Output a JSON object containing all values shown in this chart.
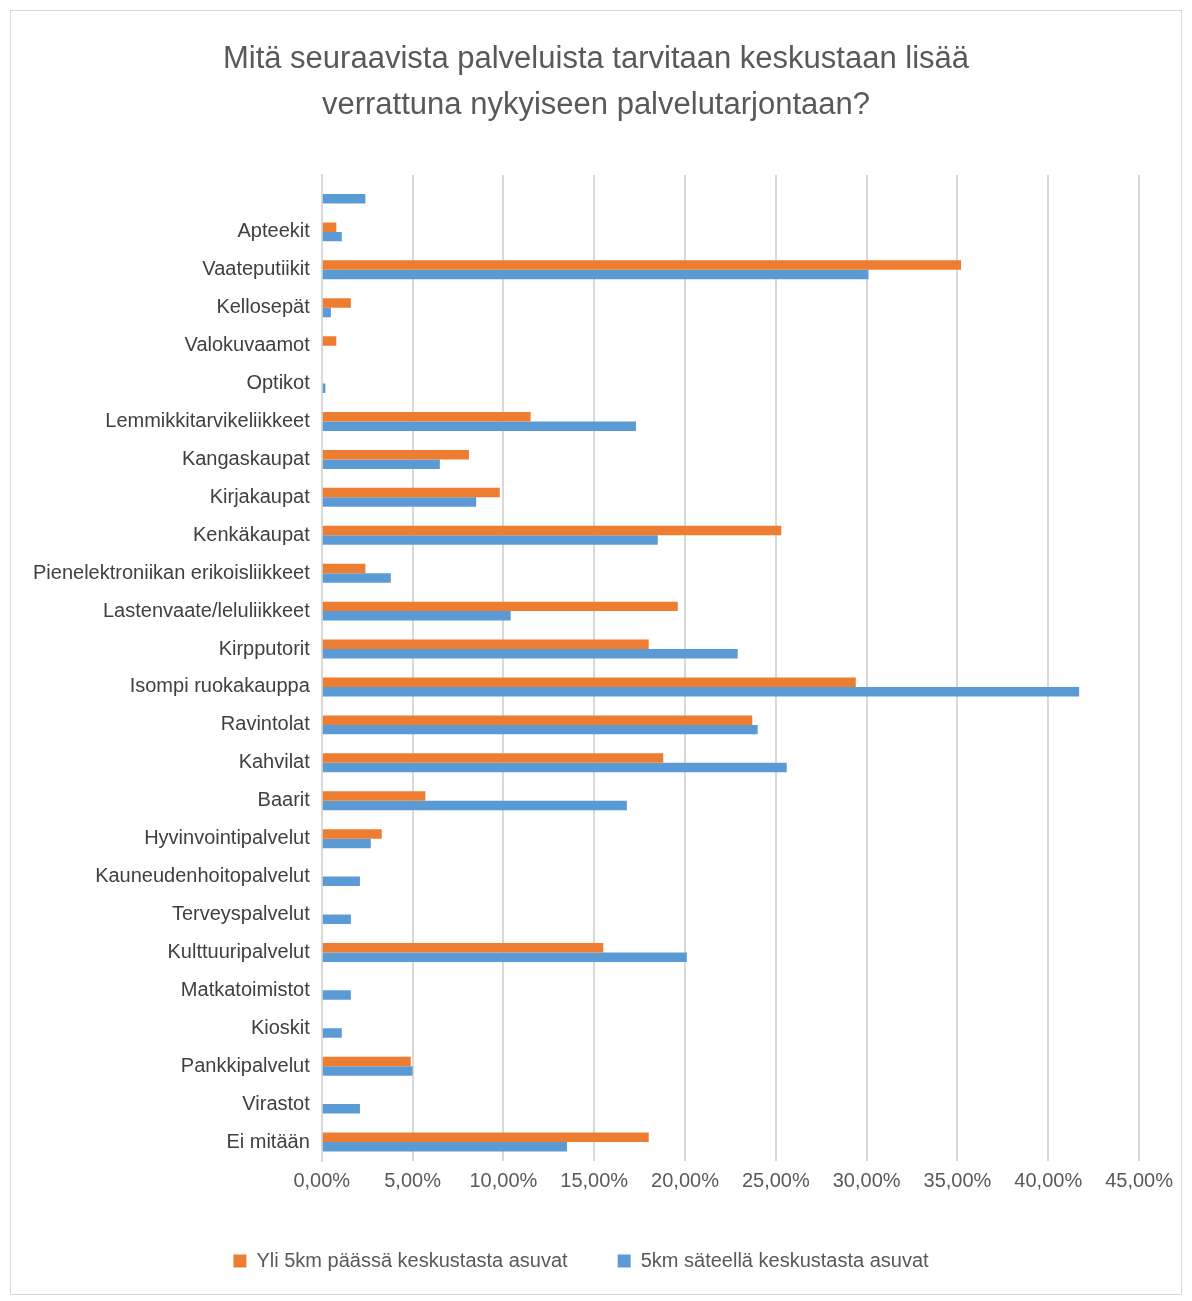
{
  "chart_data": {
    "type": "bar",
    "orientation": "horizontal",
    "title": "Mitä seuraavista palveluista tarvitaan keskustaan lisää verrattuna nykyiseen palvelutarjontaan?",
    "categories": [
      null,
      "Apteekit",
      "Vaateputiikit",
      "Kellosepät",
      "Valokuvaamot",
      "Optikot",
      "Lemmikkitarvikeliikkeet",
      "Kangaskaupat",
      "Kirjakaupat",
      "Kenkäkaupat",
      "Pienelektroniikan erikoisliikkeet",
      "Lastenvaate/leluliikkeet",
      "Kirpputorit",
      "Isompi ruokakauppa",
      "Ravintolat",
      "Kahvilat",
      "Baarit",
      "Hyvinvointipalvelut",
      "Kauneudenhoitopalvelut",
      "Terveyspalvelut",
      "Kulttuuripalvelut",
      "Matkatoimistot",
      "Kioskit",
      "Pankkipalvelut",
      "Virastot",
      "Ei mitään"
    ],
    "series": [
      {
        "name": "Yli 5km päässä keskustasta asuvat",
        "color": "#ed7d31",
        "values": [
          0,
          0.8,
          35.2,
          1.6,
          0.8,
          0,
          11.5,
          8.1,
          9.8,
          25.3,
          2.4,
          19.6,
          18.0,
          29.4,
          23.7,
          18.8,
          5.7,
          3.3,
          0,
          0,
          15.5,
          0,
          0,
          4.9,
          0,
          18.0
        ]
      },
      {
        "name": "5km säteellä keskustasta asuvat",
        "color": "#5b9bd5",
        "values": [
          2.4,
          1.1,
          30.1,
          0.5,
          0,
          0.2,
          17.3,
          6.5,
          8.5,
          18.5,
          3.8,
          10.4,
          22.9,
          41.7,
          24.0,
          25.6,
          16.8,
          2.7,
          2.1,
          1.6,
          20.1,
          1.6,
          1.1,
          5.0,
          2.1,
          13.5
        ]
      }
    ],
    "xlim": [
      0,
      45
    ],
    "xticks": [
      {
        "value": 0,
        "label": "0,00%"
      },
      {
        "value": 5,
        "label": "5,00%"
      },
      {
        "value": 10,
        "label": "10,00%"
      },
      {
        "value": 15,
        "label": "15,00%"
      },
      {
        "value": 20,
        "label": "20,00%"
      },
      {
        "value": 25,
        "label": "25,00%"
      },
      {
        "value": 30,
        "label": "30,00%"
      },
      {
        "value": 35,
        "label": "35,00%"
      },
      {
        "value": 40,
        "label": "40,00%"
      },
      {
        "value": 45,
        "label": "45,00%"
      }
    ],
    "grid": "x",
    "legend": "bottom"
  }
}
